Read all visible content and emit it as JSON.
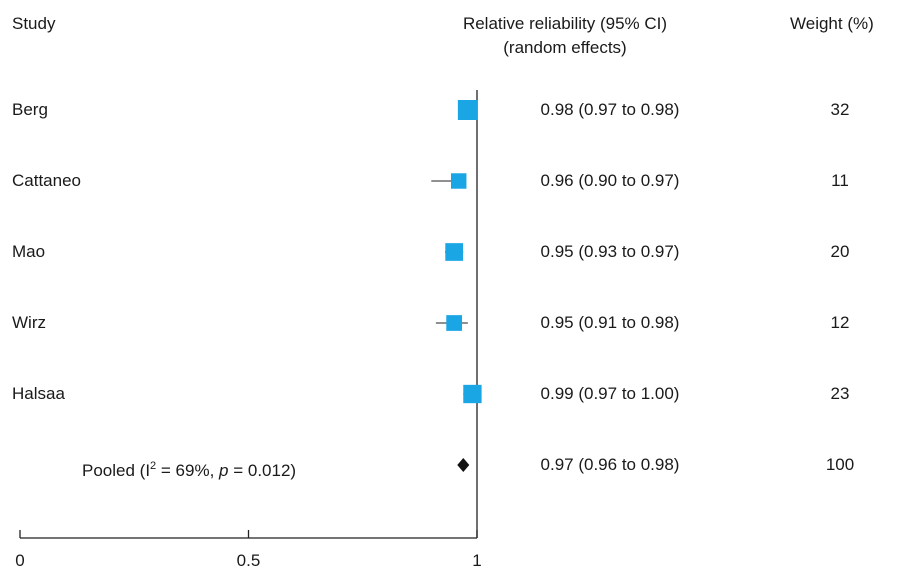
{
  "headers": {
    "study": "Study",
    "estimate_line1": "Relative reliability (95% CI)",
    "estimate_line2": "(random effects)",
    "weight": "Weight (%)"
  },
  "pooled_label": {
    "prefix": "Pooled (I",
    "sup": "2",
    "mid": " = 69%, ",
    "p": "p",
    "suffix": " = 0.012)"
  },
  "colors": {
    "marker": "#1aa6e4",
    "pooled": "#111111",
    "axis": "#222222"
  },
  "chart_data": {
    "type": "forest",
    "x_axis": {
      "range": [
        0,
        1
      ],
      "ticks": [
        0,
        0.5,
        1
      ],
      "tick_labels": [
        "0",
        "0.5",
        "1"
      ]
    },
    "reference_line": 1,
    "studies": [
      {
        "name": "Berg",
        "estimate": 0.98,
        "ci": [
          0.97,
          0.98
        ],
        "ci_text": "0.98 (0.97 to 0.98)",
        "weight": "32"
      },
      {
        "name": "Cattaneo",
        "estimate": 0.96,
        "ci": [
          0.9,
          0.97
        ],
        "ci_text": "0.96 (0.90 to 0.97)",
        "weight": "11"
      },
      {
        "name": "Mao",
        "estimate": 0.95,
        "ci": [
          0.93,
          0.97
        ],
        "ci_text": "0.95 (0.93 to 0.97)",
        "weight": "20"
      },
      {
        "name": "Wirz",
        "estimate": 0.95,
        "ci": [
          0.91,
          0.98
        ],
        "ci_text": "0.95 (0.91 to 0.98)",
        "weight": "12"
      },
      {
        "name": "Halsaa",
        "estimate": 0.99,
        "ci": [
          0.97,
          1.0
        ],
        "ci_text": "0.99 (0.97 to 1.00)",
        "weight": "23"
      }
    ],
    "pooled": {
      "estimate": 0.97,
      "ci": [
        0.96,
        0.98
      ],
      "ci_text": "0.97 (0.96 to 0.98)",
      "weight": "100"
    }
  }
}
